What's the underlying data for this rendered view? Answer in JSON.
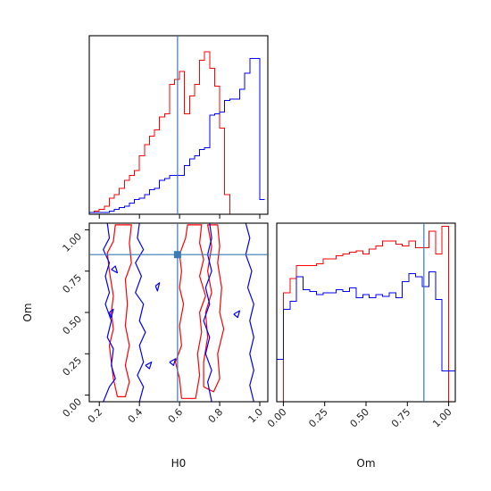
{
  "chart_data": {
    "type": "corner",
    "parameters": [
      "H0",
      "Om"
    ],
    "truth": {
      "H0": 0.59,
      "Om": 0.85,
      "color": "#3a7ab5"
    },
    "colors": {
      "red": "#ff0000",
      "blue": "#0000ff",
      "truth": "#3a7ab5"
    },
    "panels": [
      {
        "id": "h0-marginal",
        "type": "histogram",
        "xlim": [
          0.15,
          1.04
        ],
        "yrange": [
          0,
          1.1
        ],
        "bin_edges": [
          0.15,
          0.175,
          0.2,
          0.225,
          0.25,
          0.275,
          0.3,
          0.325,
          0.35,
          0.375,
          0.4,
          0.425,
          0.45,
          0.475,
          0.5,
          0.525,
          0.55,
          0.575,
          0.6,
          0.625,
          0.65,
          0.675,
          0.7,
          0.725,
          0.75,
          0.775,
          0.8,
          0.825,
          0.85,
          0.875,
          0.9,
          0.925,
          0.95,
          0.975,
          1.0,
          1.025
        ],
        "series": [
          {
            "name": "red",
            "values": [
              0.01,
              0.02,
              0.03,
              0.05,
              0.1,
              0.12,
              0.16,
              0.21,
              0.24,
              0.27,
              0.36,
              0.43,
              0.48,
              0.52,
              0.6,
              0.62,
              0.8,
              0.83,
              0.88,
              0.62,
              0.73,
              0.8,
              0.95,
              1.0,
              0.9,
              0.79,
              0.53,
              0.12,
              0.0,
              0.0,
              0.0,
              0.0,
              0.0,
              0.0,
              0.0
            ]
          },
          {
            "name": "blue",
            "values": [
              0.01,
              0.01,
              0.01,
              0.01,
              0.02,
              0.03,
              0.04,
              0.05,
              0.07,
              0.09,
              0.1,
              0.12,
              0.15,
              0.16,
              0.21,
              0.22,
              0.24,
              0.24,
              0.24,
              0.3,
              0.34,
              0.36,
              0.4,
              0.41,
              0.61,
              0.62,
              0.63,
              0.7,
              0.71,
              0.71,
              0.77,
              0.87,
              0.96,
              0.96,
              0.09
            ]
          }
        ]
      },
      {
        "id": "om-marginal",
        "type": "histogram",
        "xlim": [
          -0.04,
          1.04
        ],
        "yrange": [
          0,
          1.1
        ],
        "bin_edges": [
          -0.04,
          0.0,
          0.04,
          0.08,
          0.12,
          0.16,
          0.2,
          0.24,
          0.28,
          0.32,
          0.36,
          0.4,
          0.44,
          0.48,
          0.52,
          0.56,
          0.6,
          0.64,
          0.68,
          0.72,
          0.76,
          0.8,
          0.84,
          0.88,
          0.92,
          0.96,
          1.0,
          1.04
        ],
        "series": [
          {
            "name": "red",
            "values": [
              0.0,
              0.67,
              0.76,
              0.84,
              0.84,
              0.84,
              0.85,
              0.88,
              0.88,
              0.9,
              0.91,
              0.92,
              0.93,
              0.91,
              0.94,
              0.96,
              0.99,
              0.99,
              0.97,
              0.96,
              0.99,
              0.95,
              0.95,
              1.05,
              0.91,
              1.08,
              0.0
            ]
          },
          {
            "name": "blue",
            "values": [
              0.26,
              0.57,
              0.62,
              0.77,
              0.69,
              0.68,
              0.66,
              0.67,
              0.67,
              0.69,
              0.68,
              0.7,
              0.64,
              0.66,
              0.64,
              0.66,
              0.65,
              0.67,
              0.64,
              0.74,
              0.79,
              0.77,
              0.71,
              0.8,
              0.63,
              0.19,
              0.19
            ]
          }
        ]
      },
      {
        "id": "h0-om-joint",
        "type": "contour",
        "xlim": [
          0.15,
          1.04
        ],
        "ylim": [
          -0.04,
          1.04
        ],
        "series": [
          {
            "name": "red",
            "paths": [
              [
                [
                  0.29,
                  -0.01
                ],
                [
                  0.27,
                  0.1
                ],
                [
                  0.26,
                  0.2
                ],
                [
                  0.25,
                  0.3
                ],
                [
                  0.27,
                  0.4
                ],
                [
                  0.26,
                  0.5
                ],
                [
                  0.27,
                  0.6
                ],
                [
                  0.25,
                  0.75
                ],
                [
                  0.24,
                  0.86
                ],
                [
                  0.27,
                  0.93
                ],
                [
                  0.28,
                  1.03
                ],
                [
                  0.36,
                  1.03
                ],
                [
                  0.35,
                  0.92
                ],
                [
                  0.36,
                  0.8
                ],
                [
                  0.33,
                  0.7
                ],
                [
                  0.34,
                  0.55
                ],
                [
                  0.33,
                  0.42
                ],
                [
                  0.35,
                  0.3
                ],
                [
                  0.33,
                  0.18
                ],
                [
                  0.35,
                  0.08
                ],
                [
                  0.33,
                  -0.01
                ],
                [
                  0.29,
                  -0.01
                ]
              ],
              [
                [
                  0.61,
                  -0.02
                ],
                [
                  0.6,
                  0.1
                ],
                [
                  0.58,
                  0.2
                ],
                [
                  0.61,
                  0.3
                ],
                [
                  0.6,
                  0.42
                ],
                [
                  0.62,
                  0.55
                ],
                [
                  0.6,
                  0.65
                ],
                [
                  0.61,
                  0.75
                ],
                [
                  0.6,
                  0.85
                ],
                [
                  0.63,
                  0.95
                ],
                [
                  0.64,
                  1.03
                ],
                [
                  0.71,
                  1.03
                ],
                [
                  0.7,
                  0.92
                ],
                [
                  0.72,
                  0.82
                ],
                [
                  0.7,
                  0.72
                ],
                [
                  0.73,
                  0.6
                ],
                [
                  0.7,
                  0.5
                ],
                [
                  0.71,
                  0.38
                ],
                [
                  0.69,
                  0.25
                ],
                [
                  0.7,
                  0.12
                ],
                [
                  0.68,
                  -0.02
                ],
                [
                  0.61,
                  -0.02
                ]
              ],
              [
                [
                  0.72,
                  0.05
                ],
                [
                  0.72,
                  0.2
                ],
                [
                  0.74,
                  0.35
                ],
                [
                  0.73,
                  0.5
                ],
                [
                  0.76,
                  0.62
                ],
                [
                  0.74,
                  0.75
                ],
                [
                  0.76,
                  0.9
                ],
                [
                  0.74,
                  1.03
                ],
                [
                  0.79,
                  1.03
                ],
                [
                  0.8,
                  0.9
                ],
                [
                  0.79,
                  0.8
                ],
                [
                  0.81,
                  0.65
                ],
                [
                  0.8,
                  0.5
                ],
                [
                  0.82,
                  0.4
                ],
                [
                  0.79,
                  0.25
                ],
                [
                  0.8,
                  0.1
                ],
                [
                  0.77,
                  0.02
                ],
                [
                  0.72,
                  0.05
                ]
              ]
            ]
          },
          {
            "name": "blue",
            "paths": [
              [
                [
                  0.22,
                  -0.04
                ],
                [
                  0.25,
                  0.05
                ],
                [
                  0.28,
                  0.1
                ],
                [
                  0.26,
                  0.18
                ],
                [
                  0.27,
                  0.28
                ],
                [
                  0.24,
                  0.35
                ],
                [
                  0.26,
                  0.45
                ],
                [
                  0.23,
                  0.55
                ],
                [
                  0.25,
                  0.62
                ],
                [
                  0.23,
                  0.72
                ],
                [
                  0.25,
                  0.8
                ],
                [
                  0.22,
                  0.88
                ],
                [
                  0.25,
                  0.95
                ],
                [
                  0.24,
                  1.04
                ]
              ],
              [
                [
                  0.4,
                  1.04
                ],
                [
                  0.39,
                  0.95
                ],
                [
                  0.42,
                  0.88
                ],
                [
                  0.38,
                  0.8
                ],
                [
                  0.41,
                  0.72
                ],
                [
                  0.38,
                  0.62
                ],
                [
                  0.42,
                  0.55
                ],
                [
                  0.4,
                  0.45
                ],
                [
                  0.43,
                  0.38
                ],
                [
                  0.4,
                  0.3
                ],
                [
                  0.42,
                  0.2
                ],
                [
                  0.39,
                  0.12
                ],
                [
                  0.42,
                  0.05
                ],
                [
                  0.4,
                  -0.04
                ]
              ],
              [
                [
                  0.76,
                  -0.04
                ],
                [
                  0.74,
                  0.08
                ],
                [
                  0.76,
                  0.15
                ],
                [
                  0.73,
                  0.25
                ],
                [
                  0.75,
                  0.35
                ],
                [
                  0.72,
                  0.45
                ],
                [
                  0.75,
                  0.55
                ],
                [
                  0.73,
                  0.65
                ],
                [
                  0.76,
                  0.75
                ],
                [
                  0.74,
                  0.85
                ],
                [
                  0.76,
                  0.95
                ],
                [
                  0.75,
                  1.04
                ]
              ],
              [
                [
                  0.93,
                  1.04
                ],
                [
                  0.95,
                  0.95
                ],
                [
                  0.93,
                  0.85
                ],
                [
                  0.96,
                  0.75
                ],
                [
                  0.94,
                  0.65
                ],
                [
                  0.97,
                  0.55
                ],
                [
                  0.95,
                  0.45
                ],
                [
                  0.97,
                  0.35
                ],
                [
                  0.95,
                  0.25
                ],
                [
                  0.97,
                  0.15
                ],
                [
                  0.95,
                  0.06
                ],
                [
                  0.97,
                  -0.04
                ]
              ],
              [
                [
                  0.43,
                  0.18
                ],
                [
                  0.46,
                  0.2
                ],
                [
                  0.45,
                  0.16
                ],
                [
                  0.43,
                  0.18
                ]
              ],
              [
                [
                  0.55,
                  0.2
                ],
                [
                  0.58,
                  0.22
                ],
                [
                  0.57,
                  0.18
                ],
                [
                  0.55,
                  0.2
                ]
              ],
              [
                [
                  0.48,
                  0.66
                ],
                [
                  0.5,
                  0.68
                ],
                [
                  0.49,
                  0.63
                ],
                [
                  0.48,
                  0.66
                ]
              ],
              [
                [
                  0.26,
                  0.76
                ],
                [
                  0.28,
                  0.78
                ],
                [
                  0.29,
                  0.74
                ],
                [
                  0.26,
                  0.76
                ]
              ],
              [
                [
                  0.87,
                  0.49
                ],
                [
                  0.9,
                  0.51
                ],
                [
                  0.89,
                  0.47
                ],
                [
                  0.87,
                  0.49
                ]
              ],
              [
                [
                  0.25,
                  0.5
                ],
                [
                  0.27,
                  0.52
                ],
                [
                  0.26,
                  0.47
                ],
                [
                  0.25,
                  0.5
                ]
              ]
            ]
          }
        ]
      }
    ],
    "xlabel_left": "H0",
    "xlabel_right": "Om",
    "ylabel_left": "Om",
    "h0_ticks": [
      "0.2",
      "0.4",
      "0.6",
      "0.8",
      "1.0"
    ],
    "om_ticks": [
      "0.00",
      "0.25",
      "0.50",
      "0.75",
      "1.00"
    ]
  }
}
